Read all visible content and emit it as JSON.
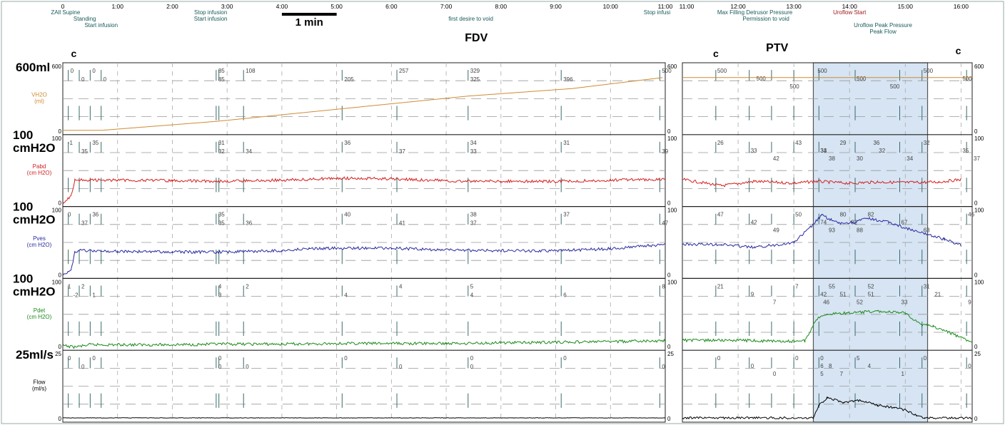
{
  "chart_data": {
    "type": "line",
    "title": "",
    "scale_bar_label": "1 min",
    "left_segment": {
      "time_ticks": [
        "0",
        "1:00",
        "2:00",
        "3:00",
        "4:00",
        "5:00",
        "6:00",
        "7:00",
        "8:00",
        "9:00",
        "10:00",
        "11:00"
      ],
      "events": [
        {
          "t": 0.05,
          "row": 0,
          "text": "ZAll Supine"
        },
        {
          "t": 0.4,
          "row": 1,
          "text": "Standing"
        },
        {
          "t": 0.7,
          "row": 2,
          "text": "Start infusion"
        },
        {
          "t": 2.7,
          "row": 0,
          "text": "Stop infusion"
        },
        {
          "t": 2.7,
          "row": 1,
          "text": "Start infusion"
        },
        {
          "t": 7.45,
          "row": 1,
          "text": "first desire to void"
        },
        {
          "t": 10.85,
          "row": 0,
          "text": "Stop infusi"
        }
      ],
      "annotation": "FDV",
      "cough_markers": [
        "c"
      ]
    },
    "right_segment": {
      "time_ticks": [
        "11:00",
        "12:00",
        "13:00",
        "14:00",
        "15:00",
        "16:00"
      ],
      "events": [
        {
          "t": 12.3,
          "row": 0,
          "text": "Max Filling Detrusor Pressure"
        },
        {
          "t": 12.5,
          "row": 1,
          "text": "Permission to void"
        },
        {
          "t": 14.0,
          "row": 0,
          "text": "Uroflow Start"
        },
        {
          "t": 14.6,
          "row": 2,
          "text": "Uroflow Peak Pressure"
        },
        {
          "t": 14.6,
          "row": 3,
          "text": "Peak Flow"
        }
      ],
      "annotation": "PTV",
      "cough_markers": [
        "c",
        "c"
      ],
      "highlight_interval": [
        13.35,
        15.4
      ]
    },
    "channels": [
      {
        "name": "VH2O",
        "unit": "(ml)",
        "scale_label": "600ml",
        "range": [
          0,
          600
        ],
        "color": "#d08a30",
        "values_left": [
          [
            0,
            0
          ],
          [
            0.7,
            0
          ],
          [
            2.8,
            85
          ],
          [
            5.1,
            205
          ],
          [
            7.4,
            325
          ],
          [
            9.3,
            396
          ],
          [
            10.95,
            500
          ]
        ],
        "values_right": [
          [
            11.0,
            500
          ],
          [
            16.2,
            500
          ]
        ],
        "labels_left": [
          {
            "t": 0.1,
            "v": "0"
          },
          {
            "t": 0.3,
            "v": "0"
          },
          {
            "t": 0.5,
            "v": "0"
          },
          {
            "t": 0.7,
            "v": "0"
          },
          {
            "t": 2.8,
            "v": "85"
          },
          {
            "t": 2.8,
            "v": "85"
          },
          {
            "t": 3.3,
            "v": "108"
          },
          {
            "t": 5.1,
            "v": "205"
          },
          {
            "t": 6.1,
            "v": "257"
          },
          {
            "t": 7.4,
            "v": "325"
          },
          {
            "t": 7.4,
            "v": "329"
          },
          {
            "t": 9.1,
            "v": "396"
          },
          {
            "t": 10.9,
            "v": "500"
          }
        ],
        "labels_right": [
          {
            "t": 11.6,
            "v": "500"
          },
          {
            "t": 12.3,
            "v": "500"
          },
          {
            "t": 12.9,
            "v": "500"
          },
          {
            "t": 13.4,
            "v": "500"
          },
          {
            "t": 14.1,
            "v": "500"
          },
          {
            "t": 14.7,
            "v": "500"
          },
          {
            "t": 15.3,
            "v": "500"
          },
          {
            "t": 16.0,
            "v": "500"
          }
        ],
        "baseline_left": [
          [
            0,
            0
          ],
          [
            16,
            0
          ]
        ]
      },
      {
        "name": "Pabd",
        "unit": "(cm H2O)",
        "scale_label": "cmH2O",
        "scale_label_top": "100",
        "range": [
          0,
          100
        ],
        "color": "#d42020",
        "values_left": [
          [
            0,
            -1
          ],
          [
            0.15,
            10
          ],
          [
            0.22,
            35
          ],
          [
            0.3,
            35
          ],
          [
            0.5,
            35
          ],
          [
            1,
            35
          ],
          [
            2,
            34
          ],
          [
            3,
            33
          ],
          [
            4,
            35
          ],
          [
            4.5,
            36
          ],
          [
            5,
            38
          ],
          [
            6,
            37
          ],
          [
            7,
            34
          ],
          [
            8,
            33
          ],
          [
            9,
            33
          ],
          [
            10,
            35
          ],
          [
            11,
            36
          ]
        ],
        "values_right": [
          [
            11,
            36
          ],
          [
            11.7,
            26
          ],
          [
            12.3,
            33
          ],
          [
            13,
            30
          ],
          [
            13.4,
            33
          ],
          [
            14,
            30
          ],
          [
            14.5,
            32
          ],
          [
            15,
            31
          ],
          [
            15.6,
            32
          ],
          [
            16,
            36
          ]
        ],
        "labels_left": [
          {
            "t": 0.05,
            "v": "-1"
          },
          {
            "t": 0.3,
            "v": "35"
          },
          {
            "t": 0.5,
            "v": "35"
          },
          {
            "t": 2.8,
            "v": "32"
          },
          {
            "t": 2.8,
            "v": "31"
          },
          {
            "t": 3.3,
            "v": "34"
          },
          {
            "t": 5.1,
            "v": "36"
          },
          {
            "t": 6.1,
            "v": "37"
          },
          {
            "t": 7.4,
            "v": "34"
          },
          {
            "t": 7.4,
            "v": "33"
          },
          {
            "t": 9.1,
            "v": "31"
          },
          {
            "t": 10.9,
            "v": "39"
          }
        ],
        "labels_right": [
          {
            "t": 11.6,
            "v": "26"
          },
          {
            "t": 12.2,
            "v": "33"
          },
          {
            "t": 12.6,
            "v": "42"
          },
          {
            "t": 13.0,
            "v": "43"
          },
          {
            "t": 13.45,
            "v": "34"
          },
          {
            "t": 13.6,
            "v": "38"
          },
          {
            "t": 13.8,
            "v": "29"
          },
          {
            "t": 13.45,
            "v": "33"
          },
          {
            "t": 14.1,
            "v": "30"
          },
          {
            "t": 14.4,
            "v": "36"
          },
          {
            "t": 14.5,
            "v": "32"
          },
          {
            "t": 15.0,
            "v": "34"
          },
          {
            "t": 15.3,
            "v": "32"
          },
          {
            "t": 16.0,
            "v": "35"
          },
          {
            "t": 16.2,
            "v": "37"
          }
        ]
      },
      {
        "name": "Pves",
        "unit": "(cm H2O)",
        "scale_label": "cmH2O",
        "scale_label_top": "100",
        "range": [
          0,
          100
        ],
        "color": "#2a2aa0",
        "values_left": [
          [
            0,
            0
          ],
          [
            0.15,
            5
          ],
          [
            0.22,
            36
          ],
          [
            0.3,
            37
          ],
          [
            1,
            36
          ],
          [
            2,
            35
          ],
          [
            3,
            35
          ],
          [
            4,
            37
          ],
          [
            4.5,
            40
          ],
          [
            5,
            41
          ],
          [
            6,
            41
          ],
          [
            7,
            38
          ],
          [
            8,
            37
          ],
          [
            9,
            37
          ],
          [
            10,
            40
          ],
          [
            11,
            47
          ]
        ],
        "values_right": [
          [
            11,
            47
          ],
          [
            11.7,
            47
          ],
          [
            12.3,
            42
          ],
          [
            13,
            50
          ],
          [
            13.3,
            74
          ],
          [
            13.5,
            93
          ],
          [
            13.8,
            80
          ],
          [
            14.1,
            82
          ],
          [
            14.3,
            88
          ],
          [
            14.7,
            82
          ],
          [
            15.2,
            67
          ],
          [
            15.4,
            63
          ],
          [
            15.7,
            55
          ],
          [
            16,
            46
          ]
        ],
        "labels_left": [
          {
            "t": 0.05,
            "v": "0"
          },
          {
            "t": 0.3,
            "v": "37"
          },
          {
            "t": 0.5,
            "v": "36"
          },
          {
            "t": 2.8,
            "v": "35"
          },
          {
            "t": 2.8,
            "v": "35"
          },
          {
            "t": 3.3,
            "v": "36"
          },
          {
            "t": 5.1,
            "v": "40"
          },
          {
            "t": 6.1,
            "v": "41"
          },
          {
            "t": 7.4,
            "v": "38"
          },
          {
            "t": 7.4,
            "v": "37"
          },
          {
            "t": 9.1,
            "v": "37"
          },
          {
            "t": 10.9,
            "v": "47"
          }
        ],
        "labels_right": [
          {
            "t": 11.6,
            "v": "47"
          },
          {
            "t": 12.2,
            "v": "42"
          },
          {
            "t": 12.6,
            "v": "49"
          },
          {
            "t": 13.0,
            "v": "50"
          },
          {
            "t": 13.45,
            "v": "74"
          },
          {
            "t": 13.6,
            "v": "93"
          },
          {
            "t": 13.8,
            "v": "80"
          },
          {
            "t": 14.0,
            "v": "82"
          },
          {
            "t": 14.1,
            "v": "88"
          },
          {
            "t": 14.3,
            "v": "82"
          },
          {
            "t": 14.9,
            "v": "67"
          },
          {
            "t": 15.3,
            "v": "63"
          },
          {
            "t": 16.1,
            "v": "46"
          }
        ]
      },
      {
        "name": "Pdet",
        "unit": "(cm H2O)",
        "scale_label": "cmH2O",
        "scale_label_top": "100",
        "range": [
          0,
          100
        ],
        "color": "#1a8a1a",
        "values_left": [
          [
            0,
            1
          ],
          [
            0.2,
            -2
          ],
          [
            0.5,
            2
          ],
          [
            1,
            2
          ],
          [
            2,
            2
          ],
          [
            3,
            3
          ],
          [
            4,
            3
          ],
          [
            5,
            4
          ],
          [
            6,
            4
          ],
          [
            7,
            4
          ],
          [
            8,
            5
          ],
          [
            9,
            6
          ],
          [
            10,
            7
          ],
          [
            11,
            8
          ]
        ],
        "values_right": [
          [
            11,
            9
          ],
          [
            12,
            9
          ],
          [
            13,
            7
          ],
          [
            13.2,
            8
          ],
          [
            13.4,
            42
          ],
          [
            13.6,
            51
          ],
          [
            14,
            52
          ],
          [
            14.5,
            55
          ],
          [
            15.0,
            52
          ],
          [
            15.3,
            33
          ],
          [
            15.5,
            31
          ],
          [
            15.8,
            21
          ],
          [
            16.1,
            9
          ],
          [
            16.2,
            8
          ]
        ],
        "labels_left": [
          {
            "t": 0.05,
            "v": "1"
          },
          {
            "t": 0.15,
            "v": "-2"
          },
          {
            "t": 0.3,
            "v": "2"
          },
          {
            "t": 0.5,
            "v": "1"
          },
          {
            "t": 2.8,
            "v": "4"
          },
          {
            "t": 2.8,
            "v": "3"
          },
          {
            "t": 3.3,
            "v": "2"
          },
          {
            "t": 5.1,
            "v": "4"
          },
          {
            "t": 6.1,
            "v": "4"
          },
          {
            "t": 7.4,
            "v": "4"
          },
          {
            "t": 7.4,
            "v": "5"
          },
          {
            "t": 9.1,
            "v": "6"
          },
          {
            "t": 10.9,
            "v": "8"
          }
        ],
        "labels_right": [
          {
            "t": 11.6,
            "v": "21"
          },
          {
            "t": 12.2,
            "v": "9"
          },
          {
            "t": 12.6,
            "v": "7"
          },
          {
            "t": 13.0,
            "v": "7"
          },
          {
            "t": 13.45,
            "v": "42"
          },
          {
            "t": 13.5,
            "v": "46"
          },
          {
            "t": 13.6,
            "v": "55"
          },
          {
            "t": 13.8,
            "v": "51"
          },
          {
            "t": 14.1,
            "v": "52"
          },
          {
            "t": 14.3,
            "v": "52"
          },
          {
            "t": 14.3,
            "v": "51"
          },
          {
            "t": 14.9,
            "v": "33"
          },
          {
            "t": 15.3,
            "v": "31"
          },
          {
            "t": 15.5,
            "v": "21"
          },
          {
            "t": 16.1,
            "v": "9"
          }
        ]
      },
      {
        "name": "Flow",
        "unit": "(ml/s)",
        "scale_label": "25ml/s",
        "range": [
          0,
          25
        ],
        "color": "#000000",
        "values_left": [
          [
            0,
            0
          ],
          [
            11,
            0
          ]
        ],
        "values_right": [
          [
            11,
            0
          ],
          [
            13.35,
            0
          ],
          [
            13.45,
            5
          ],
          [
            13.6,
            8
          ],
          [
            13.9,
            6
          ],
          [
            14.2,
            7
          ],
          [
            14.5,
            5
          ],
          [
            14.8,
            4
          ],
          [
            15.0,
            3
          ],
          [
            15.2,
            1
          ],
          [
            15.35,
            0
          ],
          [
            16.2,
            0
          ]
        ],
        "labels_left": [
          {
            "t": 0.05,
            "v": "0"
          },
          {
            "t": 0.3,
            "v": "0"
          },
          {
            "t": 0.5,
            "v": "0"
          },
          {
            "t": 2.8,
            "v": "0"
          },
          {
            "t": 2.8,
            "v": "0"
          },
          {
            "t": 3.3,
            "v": "0"
          },
          {
            "t": 5.1,
            "v": "0"
          },
          {
            "t": 6.1,
            "v": "0"
          },
          {
            "t": 7.4,
            "v": "0"
          },
          {
            "t": 7.4,
            "v": "0"
          },
          {
            "t": 9.1,
            "v": "0"
          },
          {
            "t": 10.9,
            "v": "0"
          }
        ],
        "labels_right": [
          {
            "t": 11.6,
            "v": "0"
          },
          {
            "t": 12.2,
            "v": "0"
          },
          {
            "t": 12.6,
            "v": "0"
          },
          {
            "t": 13.0,
            "v": "0"
          },
          {
            "t": 13.45,
            "v": "6"
          },
          {
            "t": 13.45,
            "v": "5"
          },
          {
            "t": 13.45,
            "v": "0"
          },
          {
            "t": 13.6,
            "v": "8"
          },
          {
            "t": 13.8,
            "v": "7"
          },
          {
            "t": 14.1,
            "v": "5"
          },
          {
            "t": 14.3,
            "v": "4"
          },
          {
            "t": 14.9,
            "v": "1"
          },
          {
            "t": 15.3,
            "v": "0"
          },
          {
            "t": 16.1,
            "v": "0"
          }
        ]
      }
    ]
  }
}
